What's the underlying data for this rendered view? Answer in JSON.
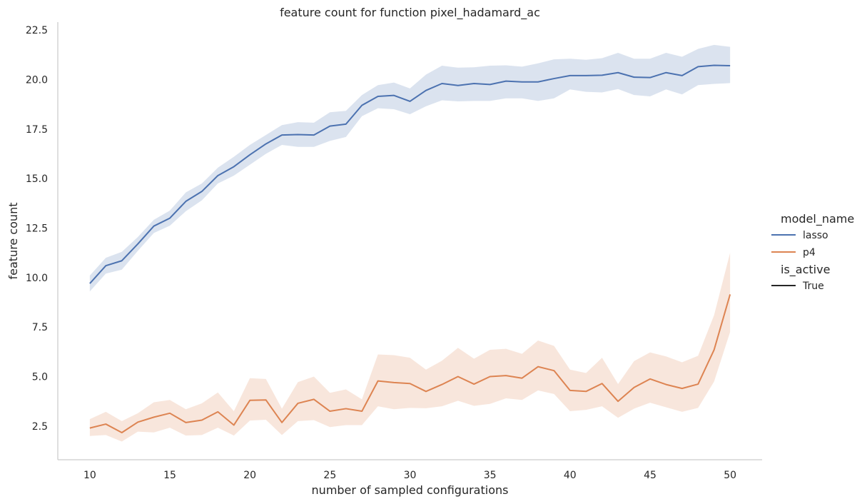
{
  "chart_data": {
    "type": "line",
    "title": "feature count for function pixel_hadamard_ac",
    "xlabel": "number of sampled configurations",
    "ylabel": "feature count",
    "xlim": [
      8.0,
      52.0
    ],
    "ylim": [
      0.8,
      22.9
    ],
    "xticks": [
      10,
      15,
      20,
      25,
      30,
      35,
      40,
      45,
      50
    ],
    "yticks": [
      2.5,
      5.0,
      7.5,
      10.0,
      12.5,
      15.0,
      17.5,
      20.0,
      22.5
    ],
    "ytick_labels": [
      "2.5",
      "5.0",
      "7.5",
      "10.0",
      "12.5",
      "15.0",
      "17.5",
      "20.0",
      "22.5"
    ],
    "grid": false,
    "legend_placement": "right",
    "legend": {
      "hue_title": "model_name",
      "style_title": "is_active",
      "style_entries": [
        {
          "label": "True",
          "color": "#262626"
        }
      ]
    },
    "x": [
      10,
      11,
      12,
      13,
      14,
      15,
      16,
      17,
      18,
      19,
      20,
      21,
      22,
      23,
      24,
      25,
      26,
      27,
      28,
      29,
      30,
      31,
      32,
      33,
      34,
      35,
      36,
      37,
      38,
      39,
      40,
      41,
      42,
      43,
      44,
      45,
      46,
      47,
      48,
      49,
      50
    ],
    "series": [
      {
        "name": "lasso",
        "color": "#4c72b0",
        "band_color": "#4c72b0",
        "values": [
          9.7,
          10.6,
          10.85,
          11.7,
          12.6,
          13.0,
          13.85,
          14.35,
          15.15,
          15.6,
          16.2,
          16.75,
          17.2,
          17.22,
          17.2,
          17.65,
          17.75,
          18.7,
          19.15,
          19.2,
          18.9,
          19.45,
          19.8,
          19.7,
          19.8,
          19.75,
          19.92,
          19.88,
          19.88,
          20.05,
          20.2,
          20.2,
          20.22,
          20.35,
          20.12,
          20.1,
          20.35,
          20.2,
          20.65,
          20.72,
          20.7
        ],
        "lower": [
          9.3,
          10.2,
          10.4,
          11.35,
          12.25,
          12.62,
          13.35,
          13.9,
          14.75,
          15.15,
          15.7,
          16.25,
          16.7,
          16.6,
          16.6,
          16.9,
          17.1,
          18.15,
          18.55,
          18.5,
          18.25,
          18.65,
          18.95,
          18.9,
          18.92,
          18.92,
          19.05,
          19.05,
          18.92,
          19.05,
          19.5,
          19.38,
          19.35,
          19.52,
          19.22,
          19.15,
          19.5,
          19.25,
          19.72,
          19.78,
          19.82
        ],
        "upper": [
          10.1,
          11.0,
          11.3,
          12.05,
          12.92,
          13.38,
          14.3,
          14.75,
          15.55,
          16.1,
          16.7,
          17.2,
          17.7,
          17.85,
          17.82,
          18.35,
          18.42,
          19.22,
          19.72,
          19.85,
          19.55,
          20.25,
          20.7,
          20.6,
          20.62,
          20.7,
          20.72,
          20.65,
          20.82,
          21.02,
          21.05,
          21.0,
          21.08,
          21.35,
          21.05,
          21.05,
          21.35,
          21.15,
          21.55,
          21.75,
          21.65
        ]
      },
      {
        "name": "p4",
        "color": "#dd8452",
        "band_color": "#dd8452",
        "values": [
          2.4,
          2.6,
          2.17,
          2.7,
          2.95,
          3.15,
          2.68,
          2.8,
          3.22,
          2.55,
          3.8,
          3.82,
          2.68,
          3.65,
          3.85,
          3.25,
          3.38,
          3.25,
          4.78,
          4.7,
          4.65,
          4.25,
          4.6,
          5.0,
          4.62,
          5.0,
          5.05,
          4.92,
          5.5,
          5.3,
          4.3,
          4.25,
          4.65,
          3.75,
          4.45,
          4.88,
          4.6,
          4.4,
          4.62,
          6.35,
          9.15
        ],
        "lower": [
          2.0,
          2.05,
          1.72,
          2.22,
          2.18,
          2.42,
          2.02,
          2.05,
          2.42,
          2.02,
          2.78,
          2.82,
          2.05,
          2.75,
          2.8,
          2.45,
          2.55,
          2.55,
          3.5,
          3.35,
          3.42,
          3.4,
          3.5,
          3.78,
          3.52,
          3.62,
          3.9,
          3.82,
          4.3,
          4.12,
          3.25,
          3.32,
          3.5,
          2.92,
          3.38,
          3.68,
          3.45,
          3.22,
          3.42,
          4.75,
          7.25
        ],
        "upper": [
          2.85,
          3.22,
          2.75,
          3.15,
          3.7,
          3.82,
          3.35,
          3.65,
          4.2,
          3.25,
          4.92,
          4.88,
          3.38,
          4.72,
          5.0,
          4.18,
          4.35,
          3.85,
          6.12,
          6.08,
          5.95,
          5.35,
          5.8,
          6.45,
          5.9,
          6.35,
          6.4,
          6.15,
          6.82,
          6.55,
          5.35,
          5.18,
          5.95,
          4.62,
          5.78,
          6.22,
          6.02,
          5.72,
          6.05,
          8.1,
          11.25
        ]
      }
    ]
  }
}
